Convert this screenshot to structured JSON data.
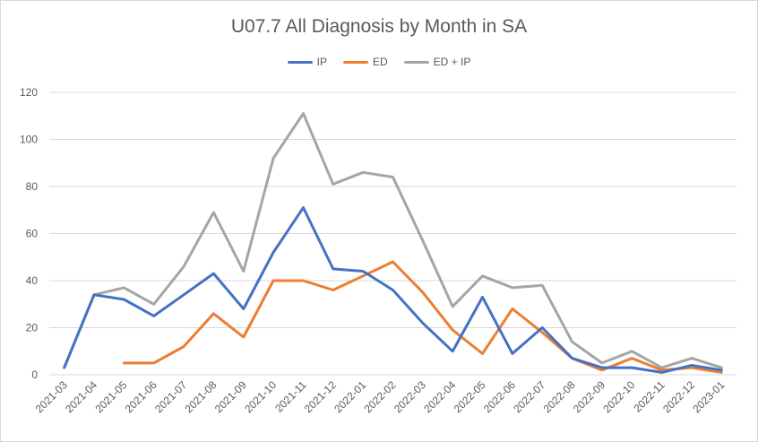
{
  "chart_data": {
    "type": "line",
    "title": "U07.7 All Diagnosis by Month in SA",
    "xlabel": "",
    "ylabel": "",
    "ylim": [
      0,
      120
    ],
    "yticks": [
      0,
      20,
      40,
      60,
      80,
      100,
      120
    ],
    "grid": true,
    "legend_position": "top-center",
    "categories": [
      "2021-03",
      "2021-04",
      "2021-05",
      "2021-06",
      "2021-07",
      "2021-08",
      "2021-09",
      "2021-10",
      "2021-11",
      "2021-12",
      "2022-01",
      "2022-02",
      "2022-03",
      "2022-04",
      "2022-05",
      "2022-06",
      "2022-07",
      "2022-08",
      "2022-09",
      "2022-10",
      "2022-11",
      "2022-12",
      "2023-01"
    ],
    "series": [
      {
        "name": "IP",
        "color": "#4472C4",
        "values": [
          3,
          34,
          32,
          25,
          34,
          43,
          28,
          52,
          71,
          45,
          44,
          36,
          22,
          10,
          33,
          9,
          20,
          7,
          3,
          3,
          1,
          4,
          2
        ]
      },
      {
        "name": "ED",
        "color": "#ED7D31",
        "values": [
          null,
          null,
          5,
          5,
          12,
          26,
          16,
          40,
          40,
          36,
          42,
          48,
          35,
          19,
          9,
          28,
          18,
          7,
          2,
          7,
          2,
          3,
          1
        ]
      },
      {
        "name": "ED + IP",
        "color": "#A5A5A5",
        "values": [
          3,
          34,
          37,
          30,
          46,
          69,
          44,
          92,
          111,
          81,
          86,
          84,
          57,
          29,
          42,
          37,
          38,
          14,
          5,
          10,
          3,
          7,
          3
        ]
      }
    ]
  }
}
